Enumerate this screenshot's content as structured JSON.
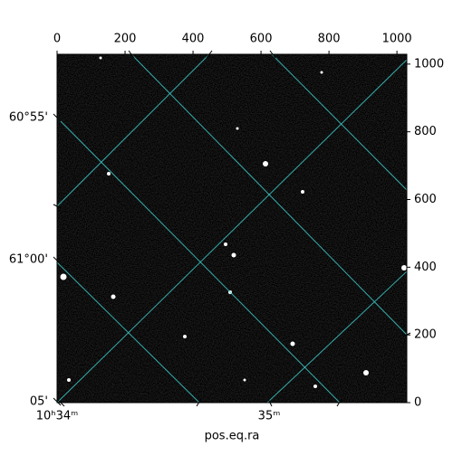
{
  "chart_data": {
    "type": "image",
    "xlabel": "pos.eq.ra",
    "xlim": [
      0,
      1029
    ],
    "xticks": [
      0,
      200,
      400,
      600,
      800,
      1000
    ],
    "ylim": [
      0,
      1029
    ],
    "yticks": [
      0,
      200,
      400,
      600,
      800,
      1000
    ],
    "ra_tick_labels": [
      "10ʰ34ᵐ",
      "35ᵐ"
    ],
    "dec_tick_labels": [
      "60°55'",
      "61°00'",
      "05'"
    ]
  }
}
